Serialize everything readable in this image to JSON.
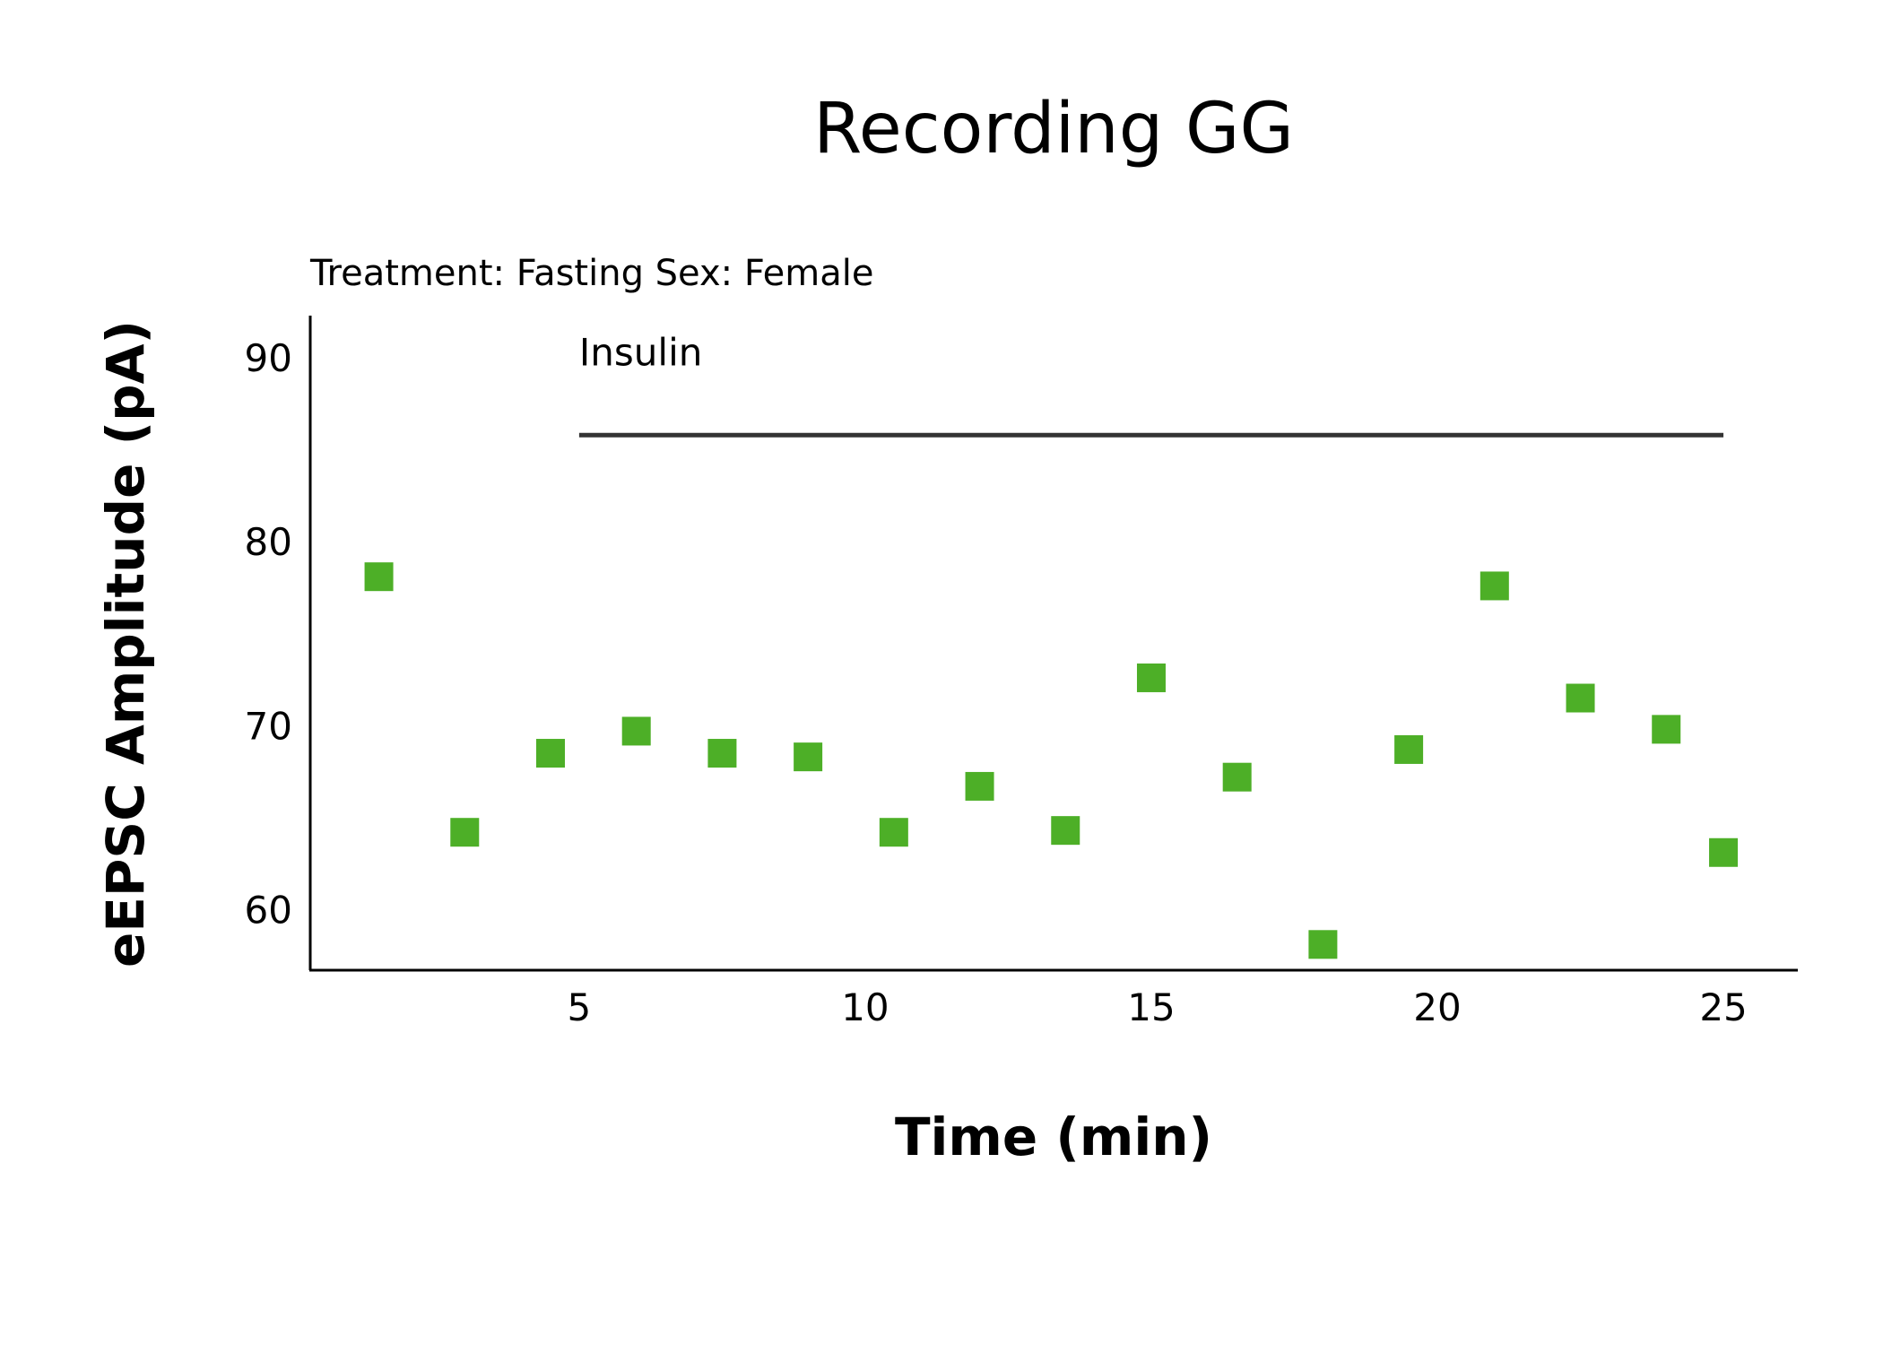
{
  "chart_data": {
    "type": "scatter",
    "title": "Recording GG",
    "subtitle": "Treatment: Fasting  Sex: Female",
    "xlabel": "Time (min)",
    "ylabel": "eEPSC Amplitude (pA)",
    "xlim": [
      0.3,
      26.3
    ],
    "ylim": [
      56.7,
      92.3
    ],
    "xticks": [
      5,
      10,
      15,
      20,
      25
    ],
    "yticks": [
      60,
      70,
      80,
      90
    ],
    "grid": false,
    "marker": "square",
    "color": "#4daf27",
    "x": [
      1.5,
      3,
      4.5,
      6,
      7.5,
      9,
      10.5,
      12,
      13.5,
      15,
      16.5,
      18,
      19.5,
      21,
      22.5,
      24,
      25
    ],
    "y": [
      78.1,
      64.2,
      68.5,
      69.7,
      68.5,
      68.3,
      64.2,
      66.7,
      64.3,
      72.6,
      67.2,
      58.1,
      68.7,
      77.6,
      71.5,
      69.8,
      63.1
    ],
    "annotations": [
      {
        "label": "Insulin",
        "x_start": 5,
        "x_end": 25,
        "y": 85.8
      }
    ]
  }
}
